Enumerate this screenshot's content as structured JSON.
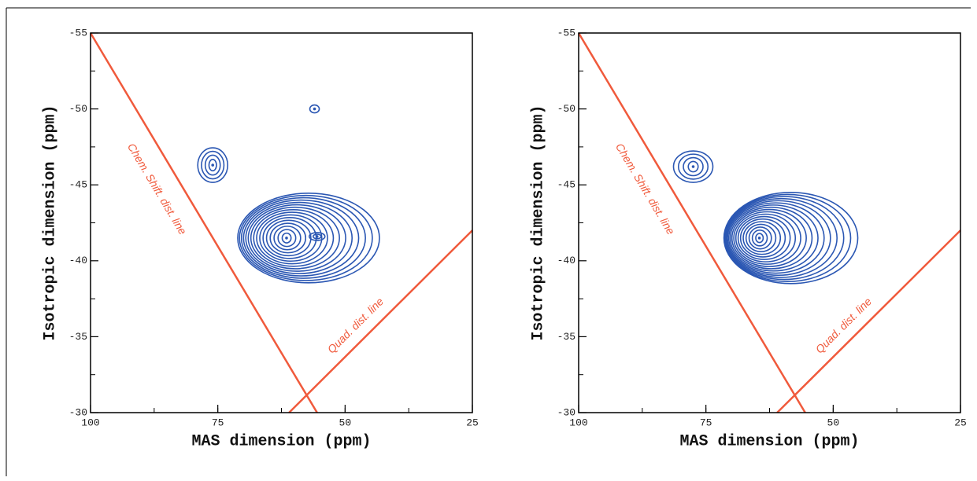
{
  "chart_data": [
    {
      "type": "contour",
      "xlabel": "MAS dimension (ppm)",
      "ylabel": "Isotropic dimension (ppm)",
      "xlim": [
        100,
        25
      ],
      "ylim": [
        -30,
        -55
      ],
      "xticks": [
        100,
        75,
        50,
        25
      ],
      "yticks": [
        -30,
        -35,
        -40,
        -45,
        -50,
        -55
      ],
      "color": "#2b57b3",
      "peaks": {
        "x": [
          76,
          56,
          61.5,
          55.5
        ],
        "y": [
          -46.3,
          -50,
          -41.5,
          -41.6
        ]
      },
      "lines": [
        {
          "label": "Chem. Shift. dist. line",
          "color": "#f05a3c",
          "x": [
            100,
            55.5
          ],
          "y": [
            -55,
            -30
          ]
        },
        {
          "label": "Quad. dist. line",
          "color": "#f05a3c",
          "x": [
            61,
            25
          ],
          "y": [
            -30,
            -42
          ]
        }
      ]
    },
    {
      "type": "contour",
      "xlabel": "MAS dimension (ppm)",
      "ylabel": "Isotropic dimension (ppm)",
      "xlim": [
        100,
        25
      ],
      "ylim": [
        -30,
        -55
      ],
      "xticks": [
        100,
        75,
        50,
        25
      ],
      "yticks": [
        -30,
        -35,
        -40,
        -45,
        -50,
        -55
      ],
      "color": "#2b57b3",
      "peaks": {
        "x": [
          77.5,
          64.5
        ],
        "y": [
          -46.2,
          -41.5
        ]
      },
      "lines": [
        {
          "label": "Chem. Shift. dist. line",
          "color": "#f05a3c",
          "x": [
            100,
            55.5
          ],
          "y": [
            -55,
            -30
          ]
        },
        {
          "label": "Quad. dist. line",
          "color": "#f05a3c",
          "x": [
            61,
            25
          ],
          "y": [
            -30,
            -42
          ]
        }
      ]
    }
  ]
}
